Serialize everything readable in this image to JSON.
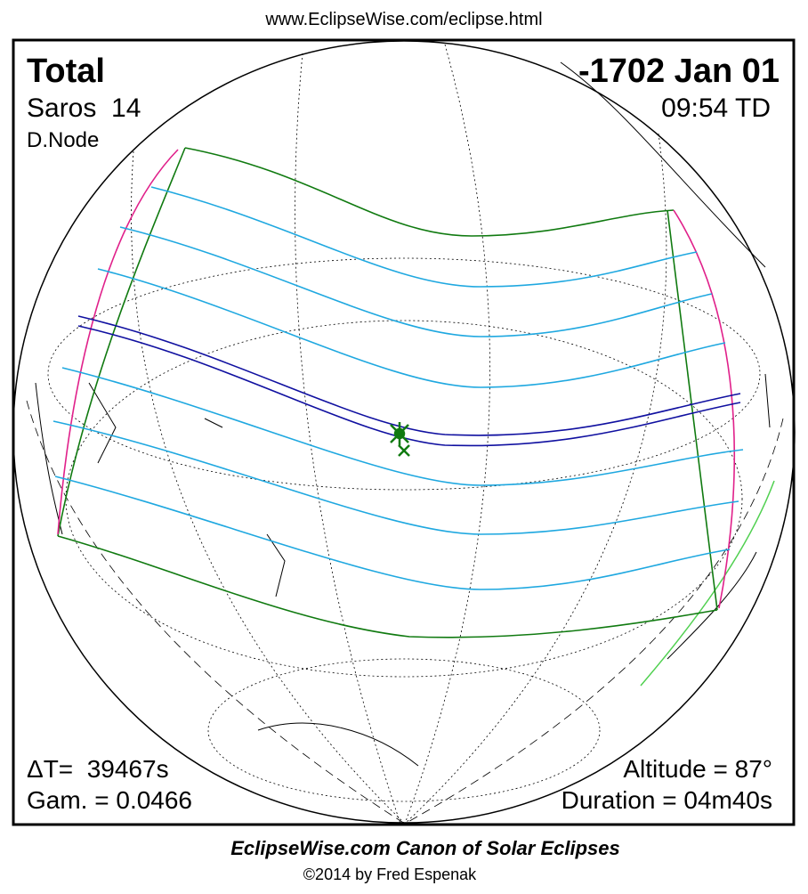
{
  "header": {
    "url": "www.EclipseWise.com/eclipse.html"
  },
  "map": {
    "type": "Total",
    "date": "-1702 Jan 01",
    "saros": "Saros  14",
    "time": "09:54 TD",
    "node": "D.Node",
    "delta_t": "ΔT=  39467s",
    "gamma": "Gam. = 0.0466",
    "altitude": "Altitude = 87°",
    "duration": "Duration = 04m40s"
  },
  "footer": {
    "title": "EclipseWise.com Canon of Solar Eclipses",
    "copyright": "©2014 by Fred Espenak"
  }
}
